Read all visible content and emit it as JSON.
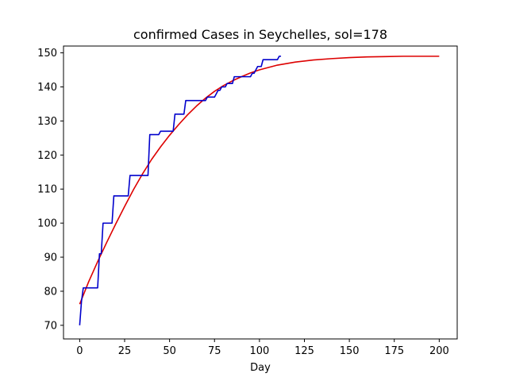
{
  "chart_data": {
    "type": "line",
    "title": "confirmed Cases in Seychelles, sol=178",
    "xlabel": "Day",
    "ylabel": "",
    "xlim": [
      -9,
      210
    ],
    "ylim": [
      66,
      152
    ],
    "xticks": [
      0,
      25,
      50,
      75,
      100,
      125,
      150,
      175,
      200
    ],
    "yticks": [
      70,
      80,
      90,
      100,
      110,
      120,
      130,
      140,
      150
    ],
    "grid": false,
    "colors": {
      "observed": "#0000cc",
      "fit": "#dd0000"
    },
    "series": [
      {
        "key": "observed",
        "color": "#0000cc",
        "x": [
          0,
          1,
          2,
          3,
          4,
          5,
          6,
          7,
          8,
          9,
          10,
          11,
          12,
          13,
          14,
          15,
          16,
          17,
          18,
          19,
          20,
          21,
          22,
          23,
          24,
          25,
          26,
          27,
          28,
          29,
          30,
          31,
          32,
          33,
          34,
          35,
          36,
          37,
          38,
          39,
          40,
          41,
          42,
          43,
          44,
          45,
          46,
          47,
          48,
          49,
          50,
          51,
          52,
          53,
          54,
          55,
          56,
          57,
          58,
          59,
          60,
          61,
          62,
          63,
          64,
          65,
          66,
          67,
          68,
          69,
          70,
          71,
          72,
          73,
          74,
          75,
          76,
          77,
          78,
          79,
          80,
          81,
          82,
          83,
          84,
          85,
          86,
          87,
          88,
          89,
          90,
          91,
          92,
          93,
          94,
          95,
          96,
          97,
          98,
          99,
          100,
          101,
          102,
          103,
          104,
          105,
          106,
          107,
          108,
          109,
          110,
          111,
          112
        ],
        "y": [
          70,
          77,
          81,
          81,
          81,
          81,
          81,
          81,
          81,
          81,
          81,
          91,
          91,
          100,
          100,
          100,
          100,
          100,
          100,
          108,
          108,
          108,
          108,
          108,
          108,
          108,
          108,
          108,
          114,
          114,
          114,
          114,
          114,
          114,
          114,
          114,
          114,
          114,
          114,
          126,
          126,
          126,
          126,
          126,
          126,
          127,
          127,
          127,
          127,
          127,
          127,
          127,
          127,
          132,
          132,
          132,
          132,
          132,
          132,
          136,
          136,
          136,
          136,
          136,
          136,
          136,
          136,
          136,
          136,
          136,
          136,
          137,
          137,
          137,
          137,
          137,
          138,
          139,
          139,
          140,
          140,
          140,
          141,
          141,
          141,
          141,
          143,
          143,
          143,
          143,
          143,
          143,
          143,
          143,
          143,
          143,
          144,
          144,
          145,
          146,
          146,
          146,
          148,
          148,
          148,
          148,
          148,
          148,
          148,
          148,
          148,
          149,
          149
        ]
      },
      {
        "key": "fit",
        "color": "#dd0000",
        "x": [
          0,
          5,
          10,
          15,
          20,
          25,
          30,
          35,
          40,
          45,
          50,
          55,
          60,
          65,
          70,
          75,
          80,
          85,
          90,
          95,
          100,
          110,
          120,
          130,
          140,
          150,
          160,
          170,
          180,
          190,
          200
        ],
        "y": [
          76.2,
          82.8,
          88.7,
          94.3,
          99.7,
          104.9,
          109.9,
          114.5,
          118.7,
          122.4,
          125.8,
          128.9,
          131.8,
          134.4,
          136.7,
          138.7,
          140.4,
          141.8,
          143.0,
          144.1,
          145.0,
          146.4,
          147.3,
          147.9,
          148.3,
          148.6,
          148.8,
          148.9,
          149.0,
          149.0,
          149.0
        ]
      }
    ]
  }
}
